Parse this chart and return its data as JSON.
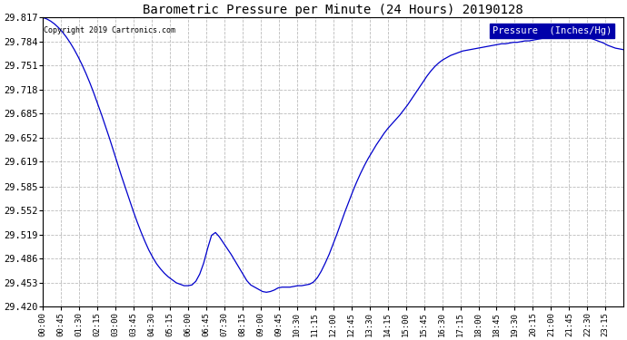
{
  "title": "Barometric Pressure per Minute (24 Hours) 20190128",
  "copyright_text": "Copyright 2019 Cartronics.com",
  "legend_label": "Pressure  (Inches/Hg)",
  "line_color": "#0000CC",
  "background_color": "#ffffff",
  "grid_color": "#bbbbbb",
  "legend_bg": "#0000AA",
  "legend_fg": "#ffffff",
  "y_min": 29.42,
  "y_max": 29.817,
  "y_ticks": [
    29.42,
    29.453,
    29.486,
    29.519,
    29.552,
    29.585,
    29.619,
    29.652,
    29.685,
    29.718,
    29.751,
    29.784,
    29.817
  ],
  "x_tick_labels": [
    "00:00",
    "00:45",
    "01:30",
    "02:15",
    "03:00",
    "03:45",
    "04:30",
    "05:15",
    "06:00",
    "06:45",
    "07:30",
    "08:15",
    "09:00",
    "09:45",
    "10:30",
    "11:15",
    "12:00",
    "12:45",
    "13:30",
    "14:15",
    "15:00",
    "15:45",
    "16:30",
    "17:15",
    "18:00",
    "18:45",
    "19:30",
    "20:15",
    "21:00",
    "21:45",
    "22:30",
    "23:15"
  ],
  "pressure_data": [
    29.817,
    29.815,
    29.812,
    29.808,
    29.803,
    29.797,
    29.79,
    29.782,
    29.773,
    29.763,
    29.752,
    29.74,
    29.727,
    29.713,
    29.698,
    29.683,
    29.667,
    29.651,
    29.634,
    29.617,
    29.6,
    29.584,
    29.568,
    29.552,
    29.537,
    29.523,
    29.51,
    29.498,
    29.488,
    29.479,
    29.472,
    29.466,
    29.461,
    29.457,
    29.453,
    29.451,
    29.449,
    29.449,
    29.45,
    29.455,
    29.465,
    29.48,
    29.5,
    29.518,
    29.522,
    29.516,
    29.508,
    29.5,
    29.492,
    29.483,
    29.474,
    29.465,
    29.456,
    29.45,
    29.447,
    29.444,
    29.441,
    29.44,
    29.441,
    29.443,
    29.446,
    29.447,
    29.447,
    29.447,
    29.448,
    29.449,
    29.449,
    29.45,
    29.451,
    29.454,
    29.46,
    29.469,
    29.48,
    29.492,
    29.506,
    29.52,
    29.535,
    29.55,
    29.564,
    29.578,
    29.591,
    29.603,
    29.614,
    29.624,
    29.633,
    29.642,
    29.65,
    29.658,
    29.665,
    29.671,
    29.677,
    29.683,
    29.69,
    29.697,
    29.705,
    29.713,
    29.721,
    29.729,
    29.737,
    29.744,
    29.75,
    29.755,
    29.759,
    29.762,
    29.765,
    29.767,
    29.769,
    29.771,
    29.772,
    29.773,
    29.774,
    29.775,
    29.776,
    29.777,
    29.778,
    29.779,
    29.78,
    29.781,
    29.781,
    29.782,
    29.783,
    29.783,
    29.784,
    29.785,
    29.785,
    29.786,
    29.787,
    29.788,
    29.789,
    29.79,
    29.791,
    29.792,
    29.793,
    29.793,
    29.793,
    29.793,
    29.792,
    29.791,
    29.79,
    29.789,
    29.788,
    29.786,
    29.784,
    29.782,
    29.779,
    29.777,
    29.775,
    29.774,
    29.773
  ],
  "figwidth": 6.9,
  "figheight": 3.75,
  "dpi": 100
}
